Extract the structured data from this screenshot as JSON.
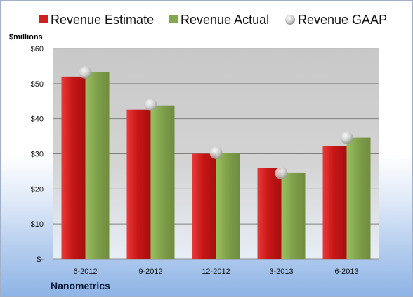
{
  "chart_data": {
    "type": "bar",
    "categories": [
      "6-2012",
      "9-2012",
      "12-2012",
      "3-2013",
      "6-2013"
    ],
    "series": [
      {
        "name": "Revenue Estimate",
        "values": [
          52.0,
          42.6,
          30.0,
          26.0,
          32.2
        ],
        "color": "#d01f1f"
      },
      {
        "name": "Revenue Actual",
        "values": [
          53.2,
          43.8,
          30.1,
          24.5,
          34.6
        ],
        "color": "#82a84e"
      }
    ],
    "gaap": {
      "name": "Revenue GAAP",
      "values": [
        53.2,
        44.0,
        30.3,
        24.5,
        34.6
      ],
      "color": "#c8c8c8"
    },
    "ylabel": "$millions",
    "yticks": [
      "$-",
      "$10",
      "$20",
      "$30",
      "$40",
      "$50",
      "$60"
    ],
    "ylim": [
      0,
      60
    ],
    "grid": true,
    "legend": "top"
  },
  "footer": {
    "company": "Nanometrics"
  }
}
